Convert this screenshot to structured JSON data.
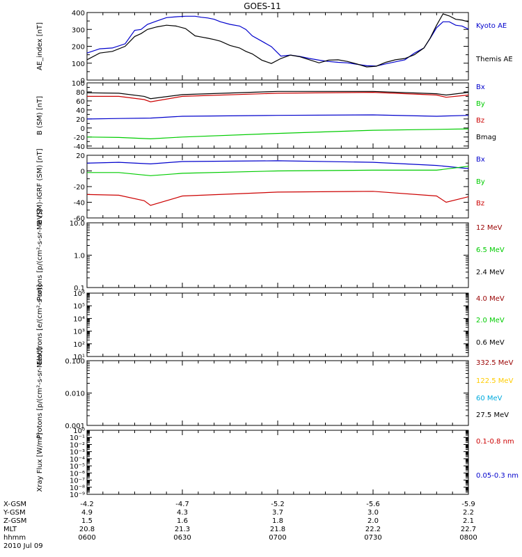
{
  "title": "GOES-11",
  "chart_data": [
    {
      "type": "line",
      "ylabel": "AE_index [nT]",
      "ylim": [
        0,
        400
      ],
      "yticks": [
        0,
        100,
        200,
        300,
        400
      ],
      "xlim": [
        0,
        120
      ],
      "series": [
        {
          "name": "Kyoto AE",
          "color": "#0000cc",
          "x": [
            0,
            4,
            8,
            12,
            15,
            17,
            19,
            22,
            25,
            28,
            31,
            34,
            36,
            38,
            40,
            42,
            45,
            48,
            50,
            52,
            55,
            58,
            61,
            64,
            67,
            70,
            73,
            76,
            79,
            82,
            85,
            88,
            91,
            94,
            97,
            100,
            103,
            106,
            108,
            110,
            112,
            114,
            116,
            118,
            120
          ],
          "values": [
            160,
            185,
            190,
            215,
            295,
            300,
            330,
            350,
            370,
            375,
            378,
            378,
            372,
            368,
            360,
            345,
            330,
            320,
            300,
            262,
            230,
            198,
            142,
            148,
            140,
            128,
            118,
            110,
            105,
            102,
            93,
            85,
            83,
            96,
            108,
            120,
            160,
            190,
            248,
            310,
            345,
            345,
            325,
            320,
            302
          ]
        },
        {
          "name": "Themis AE",
          "color": "#000000",
          "x": [
            0,
            4,
            8,
            12,
            15,
            17,
            19,
            22,
            25,
            28,
            31,
            34,
            36,
            38,
            40,
            42,
            45,
            48,
            50,
            52,
            55,
            58,
            61,
            64,
            67,
            70,
            73,
            76,
            79,
            82,
            85,
            88,
            91,
            94,
            97,
            100,
            103,
            106,
            108,
            110,
            112,
            114,
            116,
            118,
            120
          ],
          "values": [
            120,
            160,
            170,
            200,
            258,
            275,
            300,
            315,
            325,
            320,
            305,
            262,
            255,
            248,
            240,
            230,
            205,
            190,
            170,
            155,
            118,
            98,
            128,
            148,
            138,
            120,
            102,
            118,
            120,
            110,
            95,
            78,
            82,
            105,
            120,
            128,
            150,
            190,
            250,
            325,
            392,
            380,
            360,
            355,
            345
          ]
        }
      ]
    },
    {
      "type": "line",
      "ylabel": "B (SM) [nT]",
      "ylim": [
        -45,
        100
      ],
      "yticks": [
        -40,
        -20,
        0,
        20,
        40,
        60,
        80,
        100
      ],
      "xlim": [
        0,
        120
      ],
      "series": [
        {
          "name": "Bx",
          "color": "#0000cc",
          "x": [
            0,
            10,
            20,
            30,
            60,
            90,
            110,
            120
          ],
          "values": [
            20,
            21,
            22,
            26,
            28,
            29,
            26,
            28
          ]
        },
        {
          "name": "By",
          "color": "#00cc00",
          "x": [
            0,
            10,
            20,
            30,
            60,
            90,
            110,
            120
          ],
          "values": [
            -20,
            -21,
            -24,
            -20,
            -12,
            -5,
            -3,
            -2
          ]
        },
        {
          "name": "Bz",
          "color": "#cc0000",
          "x": [
            0,
            10,
            18,
            20,
            30,
            60,
            90,
            110,
            113,
            120
          ],
          "values": [
            70,
            70,
            63,
            58,
            70,
            77,
            79,
            73,
            68,
            73
          ]
        },
        {
          "name": "Bmag",
          "color": "#000000",
          "x": [
            0,
            10,
            18,
            20,
            30,
            60,
            90,
            110,
            113,
            120
          ],
          "values": [
            78,
            77,
            70,
            65,
            74,
            81,
            81,
            76,
            73,
            79
          ]
        }
      ]
    },
    {
      "type": "line",
      "ylabel": "B (SM)-IGRF (SM) [nT]",
      "ylim": [
        -60,
        20
      ],
      "yticks": [
        -60,
        -40,
        -20,
        0,
        20
      ],
      "xlim": [
        0,
        120
      ],
      "series": [
        {
          "name": "Bx",
          "color": "#0000cc",
          "x": [
            0,
            10,
            20,
            30,
            60,
            90,
            110,
            120
          ],
          "values": [
            10,
            11,
            9,
            12,
            13,
            11,
            7,
            3
          ]
        },
        {
          "name": "By",
          "color": "#00cc00",
          "x": [
            0,
            10,
            20,
            30,
            60,
            90,
            110,
            120
          ],
          "values": [
            -2,
            -2,
            -6,
            -3,
            0,
            1,
            1,
            6
          ]
        },
        {
          "name": "Bz",
          "color": "#cc0000",
          "x": [
            0,
            10,
            18,
            20,
            30,
            60,
            90,
            110,
            113,
            120
          ],
          "values": [
            -30,
            -31,
            -38,
            -44,
            -32,
            -27,
            -26,
            -32,
            -40,
            -33
          ]
        }
      ]
    },
    {
      "type": "line",
      "ylabel": "Protons [p/(cm²-s-sr-MeV)]",
      "ylim": [
        0.1,
        10
      ],
      "log": true,
      "ytick_labels": [
        "0.1",
        "1.0",
        "10.0"
      ],
      "yticks": [
        0.1,
        1,
        10
      ],
      "xlim": [
        0,
        120
      ],
      "series": [
        {
          "name": "12 MeV",
          "color": "#990000",
          "values": []
        },
        {
          "name": "6.5 MeV",
          "color": "#00cc00",
          "values": []
        },
        {
          "name": "2.4 MeV",
          "color": "#000000",
          "values": []
        }
      ]
    },
    {
      "type": "line",
      "ylabel": "Electrons [e/(cm²-s-sr)]",
      "ylim": [
        10,
        1000000
      ],
      "log": true,
      "ytick_labels": [
        "10¹",
        "10²",
        "10³",
        "10⁴",
        "10⁵",
        "10⁶"
      ],
      "yticks": [
        10,
        100,
        1000,
        10000,
        100000,
        1000000
      ],
      "xlim": [
        0,
        120
      ],
      "series": [
        {
          "name": "4.0 MeV",
          "color": "#990000",
          "values": []
        },
        {
          "name": "2.0 MeV",
          "color": "#00cc00",
          "values": []
        },
        {
          "name": "0.6 MeV",
          "color": "#000000",
          "values": []
        }
      ]
    },
    {
      "type": "line",
      "ylabel": "Protons [p/(cm²-s-sr-MeV)]",
      "ylim": [
        0.001,
        0.1
      ],
      "log": true,
      "ytick_labels": [
        "0.001",
        "0.010",
        "0.100"
      ],
      "yticks": [
        0.001,
        0.01,
        0.1
      ],
      "xlim": [
        0,
        120
      ],
      "series": [
        {
          "name": "332.5 MeV",
          "color": "#990000",
          "values": []
        },
        {
          "name": "122.5 MeV",
          "color": "#ffcc00",
          "values": []
        },
        {
          "name": "60 MeV",
          "color": "#00aadd",
          "values": []
        },
        {
          "name": "27.5 MeV",
          "color": "#000000",
          "values": []
        }
      ]
    },
    {
      "type": "line",
      "ylabel": "Xray Flux [W/m²]",
      "ylim": [
        1e-09,
        1
      ],
      "log": true,
      "ytick_labels": [
        "10⁻⁹",
        "10⁻⁸",
        "10⁻⁷",
        "10⁻⁶",
        "10⁻⁵",
        "10⁻⁴",
        "10⁻³",
        "10⁻²",
        "10⁻¹",
        "10⁰"
      ],
      "yticks": [
        1e-09,
        1e-08,
        1e-07,
        1e-06,
        1e-05,
        0.0001,
        0.001,
        0.01,
        0.1,
        1
      ],
      "xlim": [
        0,
        120
      ],
      "series": [
        {
          "name": "0.1-0.8 nm",
          "color": "#cc0000",
          "values": []
        },
        {
          "name": "0.05-0.3 nm",
          "color": "#0000cc",
          "values": []
        }
      ]
    }
  ],
  "axis_table": {
    "rows": [
      {
        "label": "X-GSM",
        "values": [
          "-4.2",
          "-4.7",
          "-5.2",
          "-5.6",
          "-5.9"
        ]
      },
      {
        "label": "Y-GSM",
        "values": [
          "4.9",
          "4.3",
          "3.7",
          "3.0",
          "2.2"
        ]
      },
      {
        "label": "Z-GSM",
        "values": [
          "1.5",
          "1.6",
          "1.8",
          "2.0",
          "2.1"
        ]
      },
      {
        "label": "MLT",
        "values": [
          "20.8",
          "21.3",
          "21.8",
          "22.2",
          "22.7"
        ]
      },
      {
        "label": "hhmm",
        "values": [
          "0600",
          "0630",
          "0700",
          "0730",
          "0800"
        ]
      }
    ],
    "date": "2010 Jul 09"
  }
}
